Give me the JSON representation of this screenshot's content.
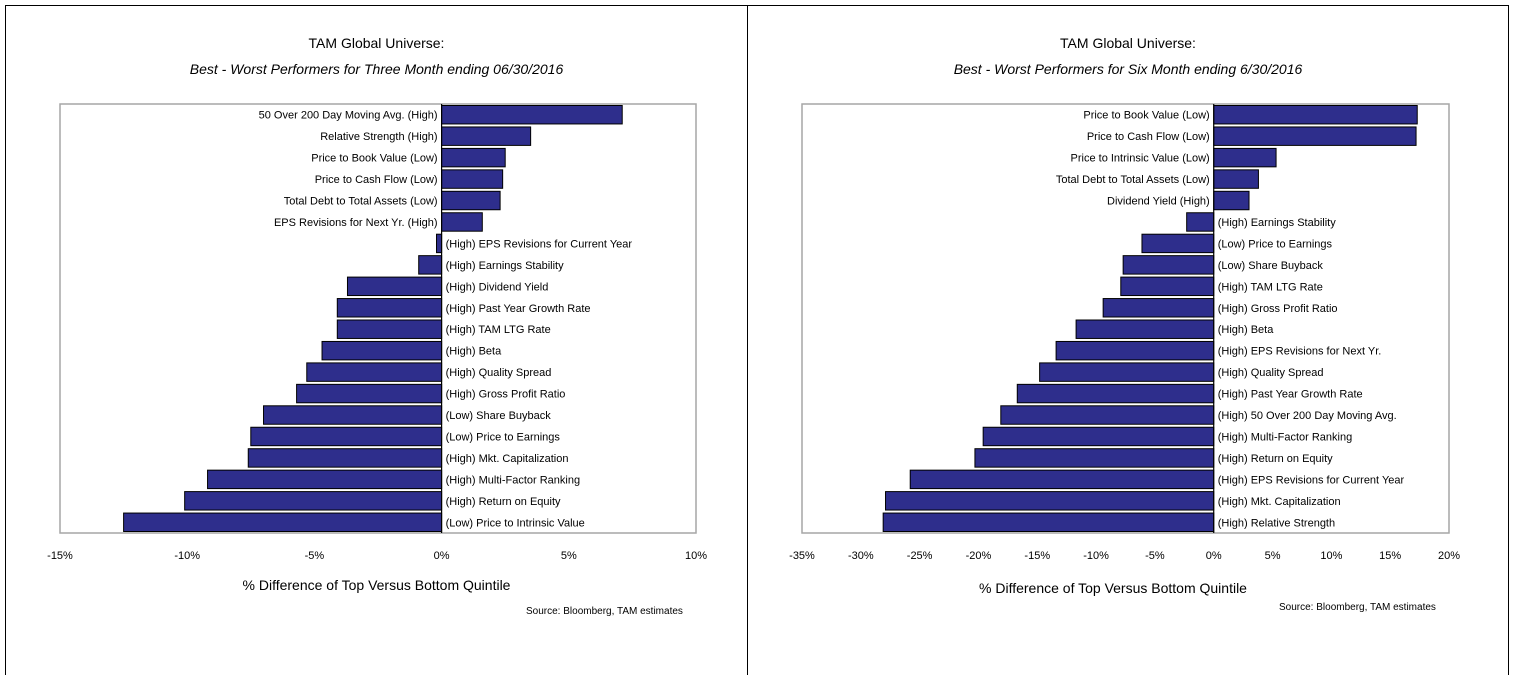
{
  "colors": {
    "bar": "#2e2e8c",
    "bar_stroke": "#000000",
    "frame": "#a6a6a6"
  },
  "chart_data": [
    {
      "type": "bar",
      "orientation": "horizontal",
      "title": "TAM Global Universe:",
      "subtitle": "Best - Worst Performers for Three Month ending 06/30/2016",
      "xlabel": "% Difference of Top Versus Bottom Quintile",
      "ylabel": "",
      "source": "Source:  Bloomberg, TAM estimates",
      "xlim": [
        -15,
        10
      ],
      "xticks": [
        -15,
        -10,
        -5,
        0,
        5,
        10
      ],
      "xtick_labels": [
        "-15%",
        "-10%",
        "-5%",
        "0%",
        "5%",
        "10%"
      ],
      "grid": false,
      "categories": [
        "50 Over 200 Day Moving Avg. (High)",
        "Relative Strength (High)",
        "Price to Book Value (Low)",
        "Price to Cash Flow (Low)",
        "Total Debt to Total Assets (Low)",
        "EPS Revisions for Next Yr. (High)",
        "(High) EPS Revisions for Current Year",
        "(High) Earnings Stability",
        "(High) Dividend Yield",
        "(High) Past Year Growth Rate",
        "(High) TAM LTG Rate",
        "(High) Beta",
        "(High) Quality Spread",
        "(High) Gross Profit Ratio",
        "(Low) Share Buyback",
        "(Low) Price to Earnings",
        "(High) Mkt. Capitalization",
        "(High) Multi-Factor Ranking",
        "(High) Return on Equity",
        "(Low) Price to Intrinsic Value"
      ],
      "values": [
        7.1,
        3.5,
        2.5,
        2.4,
        2.3,
        1.6,
        -0.2,
        -0.9,
        -3.7,
        -4.1,
        -4.1,
        -4.7,
        -5.3,
        -5.7,
        -7.0,
        -7.5,
        -7.6,
        -9.2,
        -10.1,
        -12.5
      ]
    },
    {
      "type": "bar",
      "orientation": "horizontal",
      "title": "TAM Global Universe:",
      "subtitle": "Best - Worst Performers for Six Month ending 6/30/2016",
      "xlabel": "% Difference of Top Versus Bottom Quintile",
      "ylabel": "",
      "source": "Source:  Bloomberg, TAM estimates",
      "xlim": [
        -35,
        20
      ],
      "xticks": [
        -35,
        -30,
        -25,
        -20,
        -15,
        -10,
        -5,
        0,
        5,
        10,
        15,
        20
      ],
      "xtick_labels": [
        "-35%",
        "-30%",
        "-25%",
        "-20%",
        "-15%",
        "-10%",
        "-5%",
        "0%",
        "5%",
        "10%",
        "15%",
        "20%"
      ],
      "grid": false,
      "categories": [
        "Price to Book Value (Low)",
        "Price to Cash Flow (Low)",
        "Price to Intrinsic Value (Low)",
        "Total Debt to Total Assets (Low)",
        "Dividend Yield (High)",
        "(High) Earnings Stability",
        "(Low) Price to Earnings",
        "(Low) Share Buyback",
        "(High) TAM LTG Rate",
        "(High) Gross Profit Ratio",
        "(High) Beta",
        "(High) EPS Revisions for Next Yr.",
        "(High) Quality Spread",
        "(High) Past Year Growth Rate",
        "(High) 50 Over 200 Day Moving Avg.",
        "(High) Multi-Factor Ranking",
        "(High) Return on Equity",
        "(High) EPS Revisions for Current Year",
        "(High) Mkt. Capitalization",
        "(High) Relative Strength"
      ],
      "values": [
        17.3,
        17.2,
        5.3,
        3.8,
        3.0,
        -2.3,
        -6.1,
        -7.7,
        -7.9,
        -9.4,
        -11.7,
        -13.4,
        -14.8,
        -16.7,
        -18.1,
        -19.6,
        -20.3,
        -25.8,
        -27.9,
        -28.1
      ]
    }
  ]
}
